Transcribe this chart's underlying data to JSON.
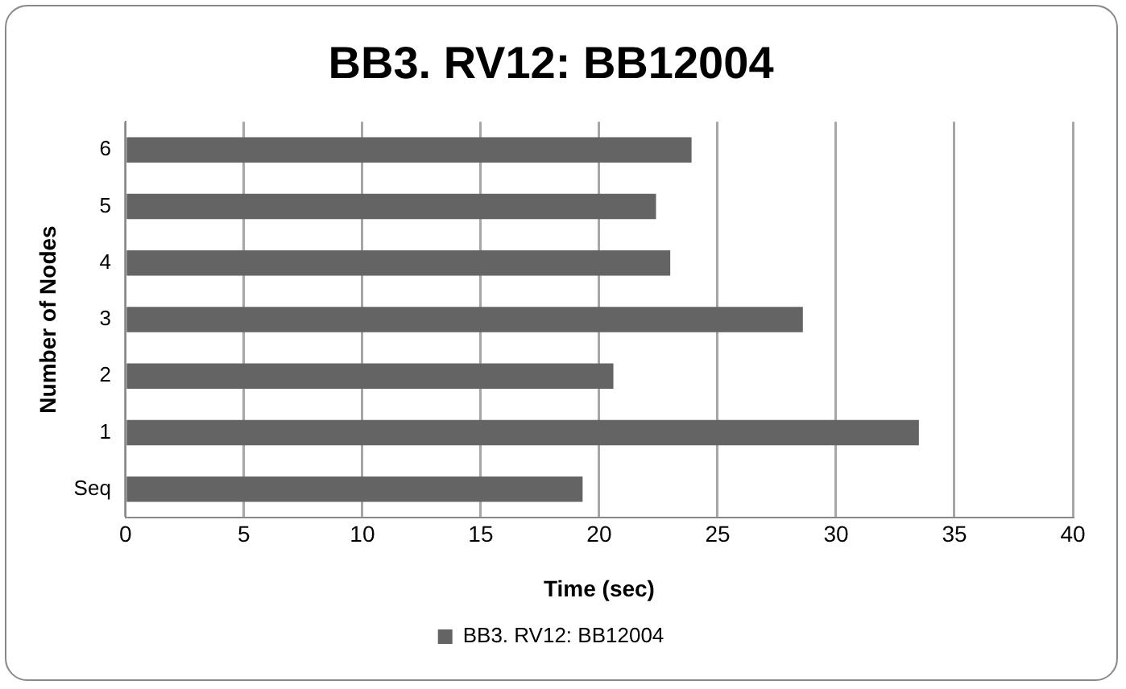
{
  "chart_data": {
    "type": "bar",
    "orientation": "horizontal",
    "title": "BB3. RV12: BB12004",
    "xlabel": "Time (sec)",
    "ylabel": "Number of Nodes",
    "categories": [
      "6",
      "5",
      "4",
      "3",
      "2",
      "1",
      "Seq"
    ],
    "series": [
      {
        "name": "BB3. RV12: BB12004",
        "color": "#646464",
        "values": [
          23.9,
          22.4,
          23.0,
          28.6,
          20.6,
          33.5,
          19.3
        ]
      }
    ],
    "xlim": [
      0,
      40
    ],
    "xticks": [
      0,
      5,
      10,
      15,
      20,
      25,
      30,
      35,
      40
    ],
    "grid": "x",
    "legend": "bottom"
  }
}
